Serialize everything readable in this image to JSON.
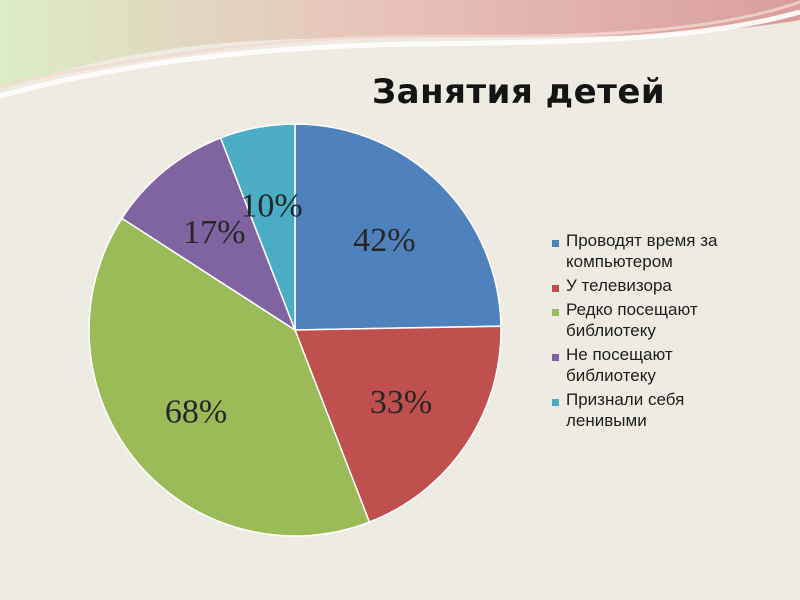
{
  "chart_data": {
    "type": "pie",
    "title": "Занятия детей",
    "categories": [
      "Проводят время за компьютером",
      "У телевизора",
      "Редко посещают библиотеку",
      "Не посещают библиотеку",
      "Признали себя ленивыми"
    ],
    "values": [
      42,
      33,
      68,
      17,
      10
    ],
    "labels": [
      "42%",
      "33%",
      "68%",
      "17%",
      "10%"
    ],
    "colors": [
      "#4f81bd",
      "#c0504d",
      "#9bbb59",
      "#8064a2",
      "#4bacc6"
    ],
    "legend_position": "right",
    "start_angle": "12 o'clock",
    "direction": "clockwise"
  }
}
